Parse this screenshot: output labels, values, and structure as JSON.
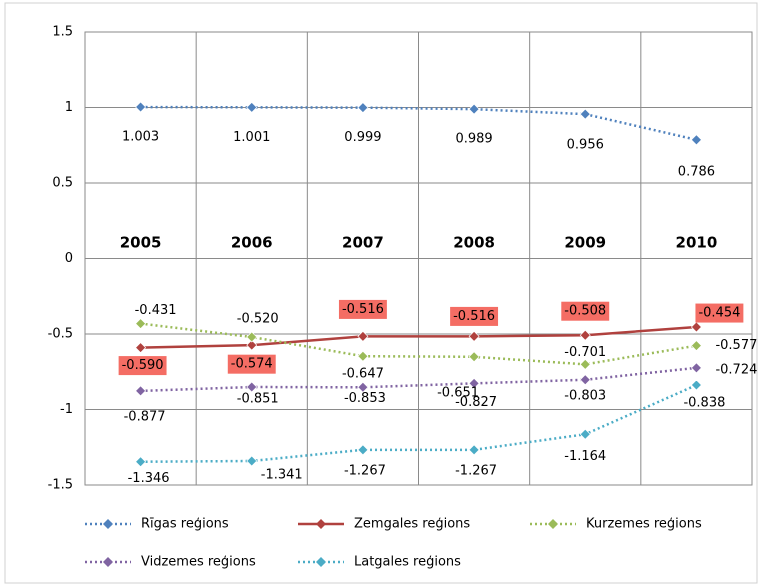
{
  "chart_data": {
    "type": "line",
    "categories": [
      "2005",
      "2006",
      "2007",
      "2008",
      "2009",
      "2010"
    ],
    "ylim": [
      -1.5,
      1.5
    ],
    "yticks": [
      {
        "value": -1.5,
        "label": "-1.5"
      },
      {
        "value": -1,
        "label": "-1"
      },
      {
        "value": -0.5,
        "label": "-0.5"
      },
      0,
      {
        "value": 0.5,
        "label": "0.5"
      },
      1,
      {
        "value": 1.5,
        "label": "1.5"
      }
    ],
    "grid": true,
    "legend": "bottom",
    "series": [
      {
        "name": "Rīgas reģions",
        "color": "#4f81bd",
        "dash": "dotted",
        "values": [
          1.003,
          1.001,
          0.999,
          0.989,
          0.956,
          0.786
        ],
        "value_labels": [
          "1.003",
          "1.001",
          "0.999",
          "0.989",
          "0.956",
          "0.786"
        ]
      },
      {
        "name": "Zemgales reģions",
        "color": "#b0413e",
        "dash": "solid",
        "label_background": "#f46d64",
        "values": [
          -0.59,
          -0.574,
          -0.516,
          -0.516,
          -0.508,
          -0.454
        ],
        "value_labels": [
          "-0.590",
          "-0.574",
          "-0.516",
          "-0.516",
          "-0.508",
          "-0.454"
        ]
      },
      {
        "name": "Kurzemes reģions",
        "color": "#9bbb59",
        "dash": "dotted",
        "values": [
          -0.431,
          -0.52,
          -0.647,
          -0.651,
          -0.701,
          -0.577
        ],
        "value_labels": [
          "-0.431",
          "-0.520",
          "-0.647",
          "-0.651",
          "-0.701",
          "-0.577"
        ]
      },
      {
        "name": "Vidzemes reģions",
        "color": "#8064a2",
        "dash": "dotted",
        "values": [
          -0.877,
          -0.851,
          -0.853,
          -0.827,
          -0.803,
          -0.724
        ],
        "value_labels": [
          "-0.877",
          "-0.851",
          "-0.853",
          "-0.827",
          "-0.803",
          "-0.724"
        ]
      },
      {
        "name": "Latgales reģions",
        "color": "#4bacc6",
        "dash": "dotted",
        "values": [
          -1.346,
          -1.341,
          -1.267,
          -1.267,
          -1.164,
          -0.838
        ],
        "value_labels": [
          "-1.346",
          "-1.341",
          "-1.267",
          "-1.267",
          "-1.164",
          "-0.838"
        ]
      }
    ]
  }
}
